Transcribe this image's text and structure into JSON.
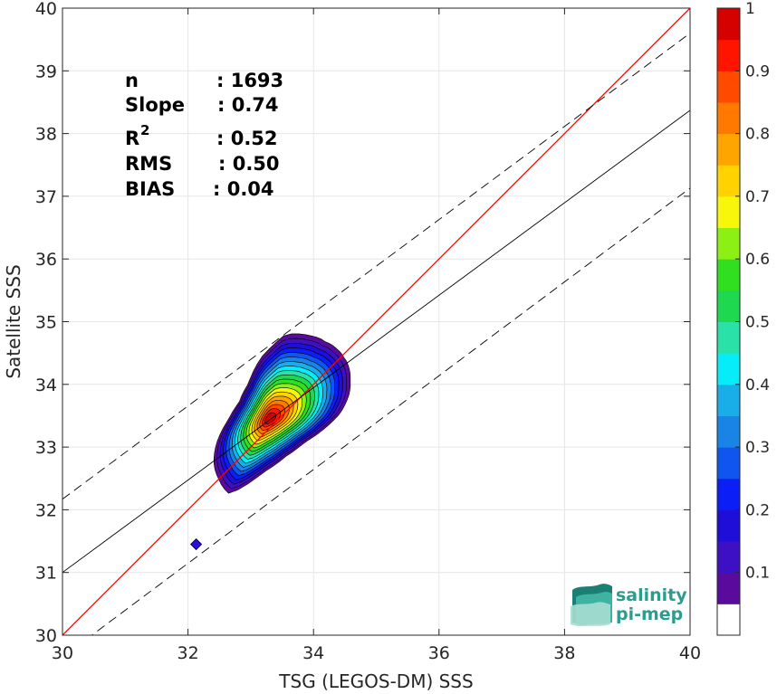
{
  "chart_data": {
    "type": "scatter",
    "subtype": "density-contour",
    "xlabel": "TSG (LEGOS-DM) SSS",
    "ylabel": "Satellite SSS",
    "xlim": [
      30,
      40
    ],
    "ylim": [
      30,
      40
    ],
    "xticks": [
      30,
      32,
      34,
      36,
      38,
      40
    ],
    "yticks": [
      30,
      31,
      32,
      33,
      34,
      35,
      36,
      37,
      38,
      39,
      40
    ],
    "grid": true,
    "stats": [
      {
        "label": "n",
        "value": ": 1693"
      },
      {
        "label": "Slope",
        "value": ": 0.74"
      },
      {
        "label": "R",
        "superscript": "2",
        "value": ": 0.52"
      },
      {
        "label": "RMS",
        "value": ": 0.50"
      },
      {
        "label": "BIAS",
        "value": ": 0.04"
      }
    ],
    "lines": [
      {
        "name": "identity",
        "color": "#ff0000",
        "style": "solid",
        "slope": 1,
        "intercept": 0
      },
      {
        "name": "fit",
        "color": "#000000",
        "style": "solid",
        "points": [
          [
            30,
            31.0
          ],
          [
            40,
            38.37
          ]
        ]
      },
      {
        "name": "upper-bound",
        "color": "#000000",
        "style": "dashed",
        "points": [
          [
            30,
            32.17
          ],
          [
            40,
            39.6
          ]
        ]
      },
      {
        "name": "lower-bound",
        "color": "#000000",
        "style": "dashed",
        "points": [
          [
            30,
            29.65
          ],
          [
            40,
            37.13
          ]
        ]
      }
    ],
    "density_peak": [
      33.3,
      33.45
    ],
    "isolated_point": [
      32.13,
      31.45
    ],
    "colorbar": {
      "min": 0,
      "max": 1,
      "ticks": [
        "0.1",
        "0.2",
        "0.3",
        "0.4",
        "0.5",
        "0.6",
        "0.7",
        "0.8",
        "0.9",
        "1"
      ],
      "levels": [
        0,
        0.05,
        0.1,
        0.15,
        0.2,
        0.25,
        0.3,
        0.35,
        0.4,
        0.45,
        0.5,
        0.55,
        0.6,
        0.65,
        0.7,
        0.75,
        0.8,
        0.85,
        0.9,
        0.95,
        1
      ],
      "colors": [
        "#ffffff",
        "#5b0a9e",
        "#3d10c4",
        "#1e0ed8",
        "#0a1ef5",
        "#0f55ee",
        "#1a84e6",
        "#1aaee8",
        "#06ecf8",
        "#2ae2a8",
        "#1ed850",
        "#30e020",
        "#8cf014",
        "#f8f60a",
        "#ffd200",
        "#ffa500",
        "#ff7800",
        "#ff4a00",
        "#ff1400",
        "#d50000",
        "#8b0000"
      ]
    }
  },
  "logo": {
    "line1": "salinity",
    "line2": "pi-mep"
  }
}
